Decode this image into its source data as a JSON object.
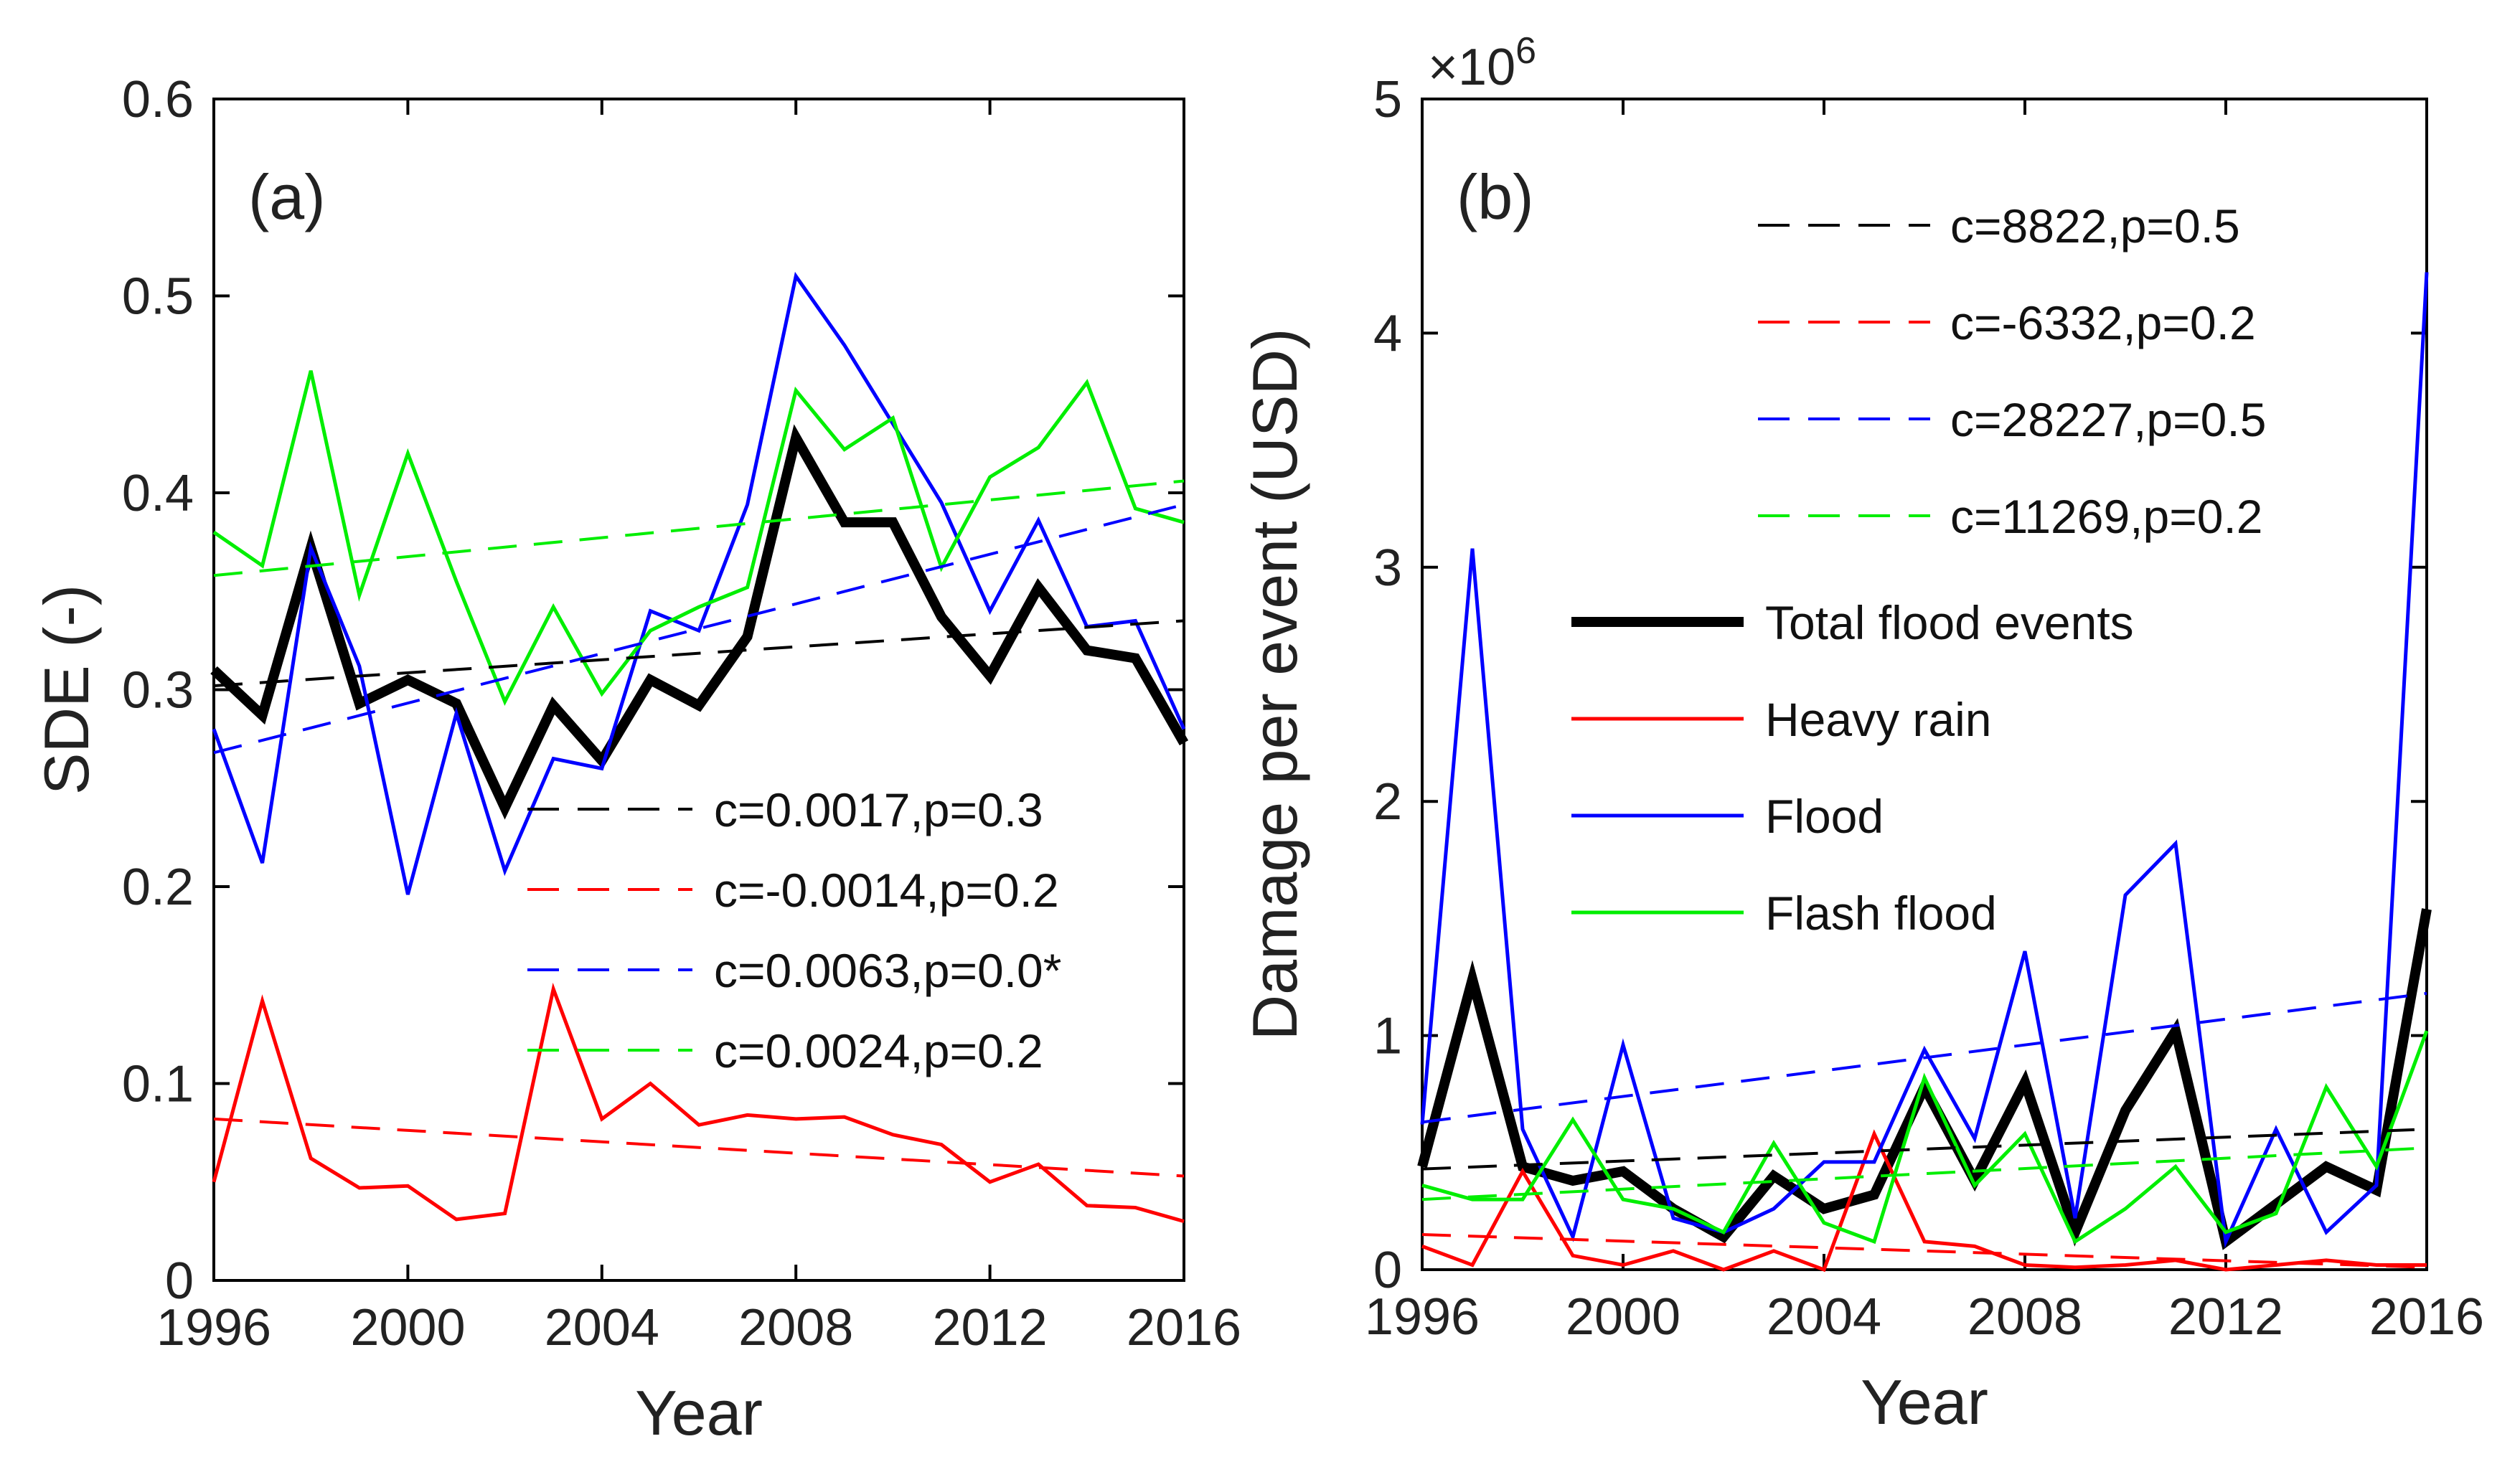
{
  "chart_data": [
    {
      "type": "line",
      "panel_label": "(a)",
      "xlabel": "Year",
      "ylabel": "SDE (-)",
      "xlim": [
        1996,
        2016
      ],
      "ylim": [
        0,
        0.6
      ],
      "x_ticks": [
        1996,
        2000,
        2004,
        2008,
        2012,
        2016
      ],
      "y_ticks": [
        0,
        0.1,
        0.2,
        0.3,
        0.4,
        0.5,
        0.6
      ],
      "y_tick_labels": [
        "0",
        "0.1",
        "0.2",
        "0.3",
        "0.4",
        "0.5",
        "0.6"
      ],
      "x": [
        1996,
        1997,
        1998,
        1999,
        2000,
        2001,
        2002,
        2003,
        2004,
        2005,
        2006,
        2007,
        2008,
        2009,
        2010,
        2011,
        2012,
        2013,
        2014,
        2015,
        2016
      ],
      "series": [
        {
          "name": "Total flood events",
          "color": "#000000",
          "width": "thick",
          "values": [
            0.31,
            0.287,
            0.372,
            0.293,
            0.305,
            0.293,
            0.24,
            0.292,
            0.264,
            0.305,
            0.292,
            0.327,
            0.428,
            0.385,
            0.385,
            0.337,
            0.307,
            0.352,
            0.32,
            0.316,
            0.273
          ]
        },
        {
          "name": "Heavy rain",
          "color": "#ff0000",
          "width": "thin",
          "values": [
            0.05,
            0.142,
            0.062,
            0.047,
            0.048,
            0.031,
            0.034,
            0.148,
            0.082,
            0.1,
            0.079,
            0.084,
            0.082,
            0.083,
            0.074,
            0.069,
            0.05,
            0.059,
            0.038,
            0.037,
            0.03
          ]
        },
        {
          "name": "Flood",
          "color": "#0000ff",
          "width": "thin",
          "values": [
            0.28,
            0.212,
            0.372,
            0.312,
            0.196,
            0.288,
            0.208,
            0.265,
            0.26,
            0.34,
            0.33,
            0.394,
            0.51,
            0.475,
            0.435,
            0.395,
            0.34,
            0.386,
            0.332,
            0.335,
            0.28
          ]
        },
        {
          "name": "Flash flood",
          "color": "#00ee00",
          "width": "thin",
          "values": [
            0.38,
            0.363,
            0.462,
            0.348,
            0.42,
            0.355,
            0.294,
            0.342,
            0.298,
            0.33,
            0.342,
            0.352,
            0.452,
            0.422,
            0.438,
            0.362,
            0.408,
            0.423,
            0.456,
            0.392,
            0.385
          ]
        }
      ],
      "trends": [
        {
          "color": "#000000",
          "label": "c=0.0017,p=0.3",
          "start": [
            1996,
            0.302
          ],
          "end": [
            2016,
            0.335
          ]
        },
        {
          "color": "#ff0000",
          "label": "c=-0.0014,p=0.2",
          "start": [
            1996,
            0.082
          ],
          "end": [
            2016,
            0.053
          ]
        },
        {
          "color": "#0000ff",
          "label": "c=0.0063,p=0.0*",
          "start": [
            1996,
            0.268
          ],
          "end": [
            2016,
            0.394
          ]
        },
        {
          "color": "#00ee00",
          "label": "c=0.0024,p=0.2",
          "start": [
            1996,
            0.358
          ],
          "end": [
            2016,
            0.406
          ]
        }
      ]
    },
    {
      "type": "line",
      "panel_label": "(b)",
      "xlabel": "Year",
      "ylabel": "Damage per event (USD)",
      "exponent_label": "×10",
      "exponent_power": "6",
      "xlim": [
        1996,
        2016
      ],
      "ylim": [
        0,
        5
      ],
      "x_ticks": [
        1996,
        2000,
        2004,
        2008,
        2012,
        2016
      ],
      "y_ticks": [
        0,
        1,
        2,
        3,
        4,
        5
      ],
      "y_tick_labels": [
        "0",
        "1",
        "2",
        "3",
        "4",
        "5"
      ],
      "x": [
        1996,
        1997,
        1998,
        1999,
        2000,
        2001,
        2002,
        2003,
        2004,
        2005,
        2006,
        2007,
        2008,
        2009,
        2010,
        2011,
        2012,
        2013,
        2014,
        2015,
        2016
      ],
      "series": [
        {
          "name": "Total flood events",
          "color": "#000000",
          "width": "thick",
          "values": [
            0.44,
            1.24,
            0.44,
            0.38,
            0.42,
            0.26,
            0.14,
            0.4,
            0.26,
            0.32,
            0.78,
            0.38,
            0.8,
            0.16,
            0.68,
            1.02,
            0.12,
            0.28,
            0.44,
            0.34,
            1.54
          ]
        },
        {
          "name": "Heavy rain",
          "color": "#ff0000",
          "width": "thin",
          "values": [
            0.1,
            0.02,
            0.42,
            0.06,
            0.02,
            0.08,
            0.0,
            0.08,
            0.0,
            0.58,
            0.12,
            0.1,
            0.02,
            0.01,
            0.02,
            0.04,
            0.0,
            0.02,
            0.04,
            0.02,
            0.02
          ]
        },
        {
          "name": "Flood",
          "color": "#0000ff",
          "width": "thin",
          "values": [
            0.62,
            3.08,
            0.6,
            0.14,
            0.96,
            0.22,
            0.16,
            0.26,
            0.46,
            0.46,
            0.94,
            0.56,
            1.36,
            0.22,
            1.6,
            1.82,
            0.12,
            0.6,
            0.16,
            0.36,
            4.26
          ]
        },
        {
          "name": "Flash flood",
          "color": "#00ee00",
          "width": "thin",
          "values": [
            0.36,
            0.3,
            0.3,
            0.64,
            0.3,
            0.26,
            0.16,
            0.54,
            0.2,
            0.12,
            0.82,
            0.36,
            0.58,
            0.12,
            0.26,
            0.44,
            0.16,
            0.24,
            0.78,
            0.44,
            1.02
          ]
        }
      ],
      "trends": [
        {
          "color": "#000000",
          "label": "c=8822,p=0.5",
          "start": [
            1996,
            0.43
          ],
          "end": [
            2016,
            0.6
          ]
        },
        {
          "color": "#ff0000",
          "label": "c=-6332,p=0.2",
          "start": [
            1996,
            0.15
          ],
          "end": [
            2016,
            0.01
          ]
        },
        {
          "color": "#0000ff",
          "label": "c=28227,p=0.5",
          "start": [
            1996,
            0.63
          ],
          "end": [
            2016,
            1.18
          ]
        },
        {
          "color": "#00ee00",
          "label": "c=11269,p=0.2",
          "start": [
            1996,
            0.3
          ],
          "end": [
            2016,
            0.52
          ]
        }
      ],
      "legend": [
        {
          "label": "Total flood events",
          "color": "#000000",
          "width": "thick"
        },
        {
          "label": "Heavy rain",
          "color": "#ff0000",
          "width": "thin"
        },
        {
          "label": "Flood",
          "color": "#0000ff",
          "width": "thin"
        },
        {
          "label": "Flash flood",
          "color": "#00ee00",
          "width": "thin"
        }
      ]
    }
  ]
}
